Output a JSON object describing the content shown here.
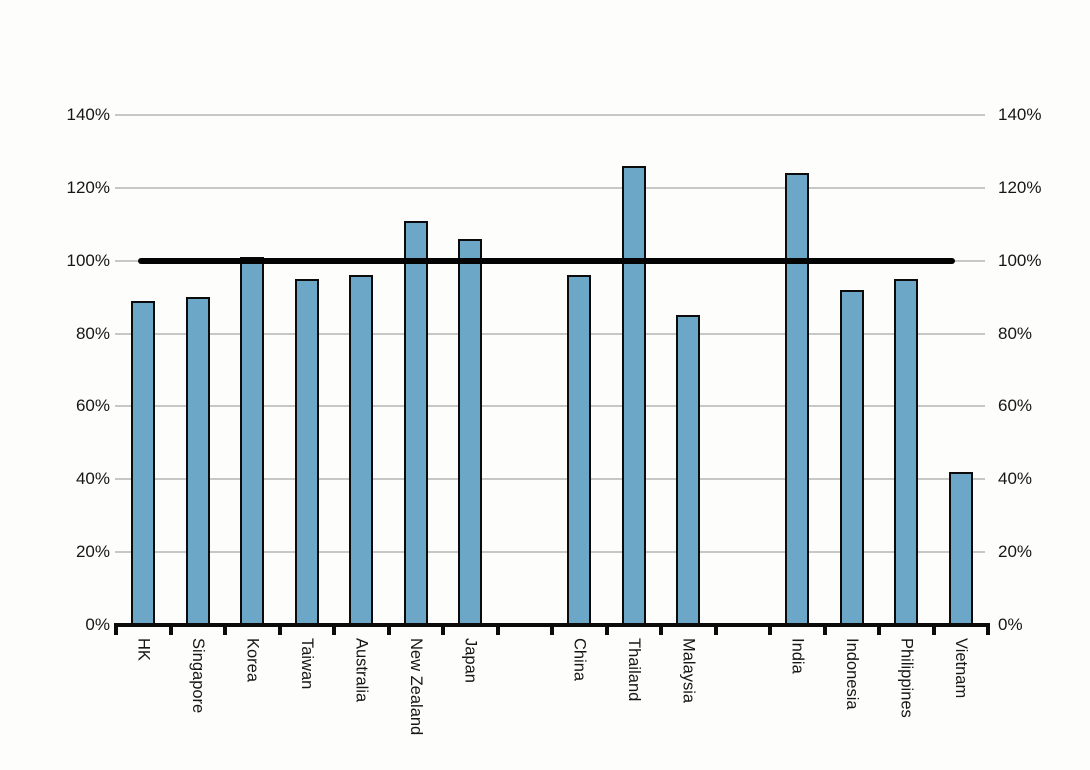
{
  "chart_data": {
    "type": "bar",
    "title": "",
    "xlabel": "",
    "ylabel": "",
    "categories": [
      "HK",
      "Singapore",
      "Korea",
      "Taiwan",
      "Australia",
      "New Zealand",
      "Japan",
      "China",
      "Thailand",
      "Malaysia",
      "India",
      "Indonesia",
      "Philippines",
      "Vietnam"
    ],
    "values": [
      89,
      90,
      101,
      95,
      96,
      111,
      106,
      96,
      126,
      85,
      124,
      92,
      95,
      42
    ],
    "unit": "%",
    "ylim": [
      0,
      140
    ],
    "ytick_step": 20,
    "ytick_labels": [
      "0%",
      "20%",
      "40%",
      "60%",
      "80%",
      "100%",
      "120%",
      "140%"
    ],
    "y_axis_sides": "both",
    "grid": true,
    "legend_position": "none",
    "gap_after_indices": [
      6,
      9
    ],
    "reference_line": {
      "value": 100,
      "label": "100%"
    },
    "colors": {
      "bar_fill": "#6da7c7",
      "bar_border": "#0b0b0b",
      "gridline": "#c6c8c6",
      "reference_line": "#030303",
      "axis": "#0b0b0b",
      "text": "#161616",
      "background": "#fdfdfc"
    }
  }
}
